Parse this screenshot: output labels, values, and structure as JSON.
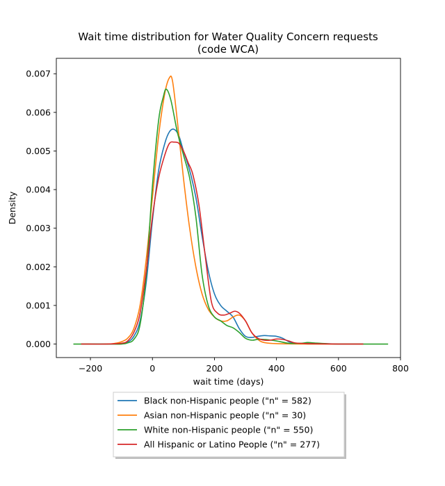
{
  "chart_data": {
    "type": "line",
    "title": "Wait time distribution  for Water Quality Concern requests\n(code WCA)",
    "xlabel": "wait time (days)",
    "ylabel": "Density",
    "xlim": [
      -310,
      800
    ],
    "ylim": [
      -0.00035,
      0.0074
    ],
    "xticks": [
      -200,
      0,
      200,
      400,
      600,
      800
    ],
    "xtick_labels": [
      "−200",
      "0",
      "200",
      "400",
      "600",
      "800"
    ],
    "yticks": [
      0,
      0.001,
      0.002,
      0.003,
      0.004,
      0.005,
      0.006,
      0.007
    ],
    "ytick_labels": [
      "0.000",
      "0.001",
      "0.002",
      "0.003",
      "0.004",
      "0.005",
      "0.006",
      "0.007"
    ],
    "grid": false,
    "legend_position": "below-center",
    "series": [
      {
        "name": "Black non-Hispanic people (\"n\" = 582)",
        "color": "#1f77b4",
        "points": [
          [
            -230,
            0
          ],
          [
            -150,
            0
          ],
          [
            -100,
            1e-05
          ],
          [
            -80,
            5e-05
          ],
          [
            -60,
            0.0002
          ],
          [
            -40,
            0.0006
          ],
          [
            -20,
            0.0016
          ],
          [
            0,
            0.0032
          ],
          [
            20,
            0.0045
          ],
          [
            40,
            0.0052
          ],
          [
            55,
            0.0055
          ],
          [
            70,
            0.00556
          ],
          [
            85,
            0.0054
          ],
          [
            100,
            0.005
          ],
          [
            120,
            0.0045
          ],
          [
            140,
            0.0038
          ],
          [
            160,
            0.0028
          ],
          [
            180,
            0.0019
          ],
          [
            200,
            0.0013
          ],
          [
            220,
            0.001
          ],
          [
            240,
            0.00085
          ],
          [
            260,
            0.0007
          ],
          [
            280,
            0.0004
          ],
          [
            300,
            0.0002
          ],
          [
            320,
            0.00017
          ],
          [
            340,
            0.0002
          ],
          [
            360,
            0.00022
          ],
          [
            380,
            0.00021
          ],
          [
            400,
            0.0002
          ],
          [
            420,
            0.00015
          ],
          [
            440,
            6e-05
          ],
          [
            460,
            2e-05
          ],
          [
            500,
            1e-05
          ],
          [
            550,
            1e-05
          ],
          [
            600,
            0
          ],
          [
            680,
            0
          ]
        ]
      },
      {
        "name": "Asian non-Hispanic people (\"n\" = 30)",
        "color": "#ff7f0e",
        "points": [
          [
            -230,
            0
          ],
          [
            -150,
            0
          ],
          [
            -120,
            2e-05
          ],
          [
            -100,
            6e-05
          ],
          [
            -80,
            0.00015
          ],
          [
            -60,
            0.0004
          ],
          [
            -40,
            0.001
          ],
          [
            -20,
            0.0022
          ],
          [
            0,
            0.0038
          ],
          [
            20,
            0.0054
          ],
          [
            40,
            0.0065
          ],
          [
            55,
            0.0069
          ],
          [
            65,
            0.0068
          ],
          [
            80,
            0.0058
          ],
          [
            100,
            0.0043
          ],
          [
            120,
            0.003
          ],
          [
            140,
            0.002
          ],
          [
            160,
            0.0013
          ],
          [
            180,
            0.0009
          ],
          [
            200,
            0.0007
          ],
          [
            220,
            0.0006
          ],
          [
            240,
            0.0006
          ],
          [
            260,
            0.0007
          ],
          [
            280,
            0.00075
          ],
          [
            300,
            0.0006
          ],
          [
            320,
            0.0003
          ],
          [
            340,
            0.00012
          ],
          [
            360,
            4e-05
          ],
          [
            400,
            1e-05
          ],
          [
            500,
            0
          ],
          [
            600,
            0
          ],
          [
            680,
            0
          ]
        ]
      },
      {
        "name": "White non-Hispanic people (\"n\" = 550)",
        "color": "#2ca02c",
        "points": [
          [
            -255,
            0
          ],
          [
            -150,
            0
          ],
          [
            -100,
            0
          ],
          [
            -80,
            3e-05
          ],
          [
            -60,
            0.00012
          ],
          [
            -40,
            0.0005
          ],
          [
            -20,
            0.0018
          ],
          [
            0,
            0.0041
          ],
          [
            20,
            0.0058
          ],
          [
            35,
            0.0064
          ],
          [
            45,
            0.0066
          ],
          [
            60,
            0.0063
          ],
          [
            80,
            0.0055
          ],
          [
            100,
            0.0049
          ],
          [
            120,
            0.0043
          ],
          [
            140,
            0.0033
          ],
          [
            160,
            0.0018
          ],
          [
            180,
            0.001
          ],
          [
            200,
            0.0007
          ],
          [
            220,
            0.0006
          ],
          [
            240,
            0.00048
          ],
          [
            260,
            0.00042
          ],
          [
            280,
            0.0003
          ],
          [
            300,
            0.00015
          ],
          [
            320,
            0.0001
          ],
          [
            340,
            0.00012
          ],
          [
            360,
            0.00012
          ],
          [
            400,
            8e-05
          ],
          [
            440,
            2e-05
          ],
          [
            480,
            2e-05
          ],
          [
            500,
            4e-05
          ],
          [
            520,
            3e-05
          ],
          [
            560,
            1e-05
          ],
          [
            600,
            0
          ],
          [
            700,
            0
          ],
          [
            760,
            0
          ]
        ]
      },
      {
        "name": "All Hispanic or Latino People (\"n\" = 277)",
        "color": "#d62728",
        "points": [
          [
            -230,
            0
          ],
          [
            -150,
            0
          ],
          [
            -100,
            2e-05
          ],
          [
            -80,
            8e-05
          ],
          [
            -60,
            0.0003
          ],
          [
            -40,
            0.0008
          ],
          [
            -20,
            0.0019
          ],
          [
            0,
            0.0033
          ],
          [
            20,
            0.0043
          ],
          [
            40,
            0.0049
          ],
          [
            55,
            0.0052
          ],
          [
            70,
            0.00523
          ],
          [
            85,
            0.0052
          ],
          [
            100,
            0.005
          ],
          [
            115,
            0.0047
          ],
          [
            130,
            0.0044
          ],
          [
            150,
            0.0036
          ],
          [
            170,
            0.0023
          ],
          [
            190,
            0.0011
          ],
          [
            210,
            0.0008
          ],
          [
            230,
            0.00075
          ],
          [
            250,
            0.0008
          ],
          [
            265,
            0.00085
          ],
          [
            280,
            0.0008
          ],
          [
            300,
            0.0006
          ],
          [
            320,
            0.0003
          ],
          [
            340,
            0.00015
          ],
          [
            360,
            0.0001
          ],
          [
            380,
            0.0001
          ],
          [
            400,
            0.00013
          ],
          [
            420,
            0.00012
          ],
          [
            440,
            8e-05
          ],
          [
            460,
            3e-05
          ],
          [
            500,
            1e-05
          ],
          [
            600,
            0
          ],
          [
            680,
            0
          ]
        ]
      }
    ]
  }
}
